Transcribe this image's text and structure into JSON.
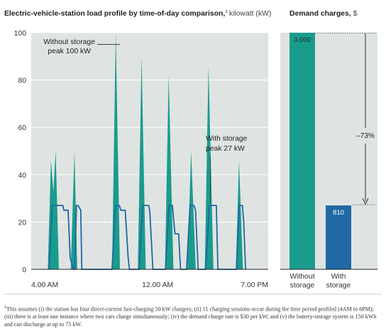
{
  "chart_data": [
    {
      "type": "area",
      "title": "Electric-vehicle-station load profile by time-of-day comparison,",
      "title_sup": "1",
      "unit": "kilowatt (kW)",
      "ylim": [
        0,
        100
      ],
      "yticks": [
        "0",
        "20",
        "40",
        "60",
        "80",
        "100"
      ],
      "xlim": [
        "04:00",
        "19:00"
      ],
      "xticks": [
        {
          "label": "4.00 AM",
          "t": "04:00"
        },
        {
          "label": "12.00 AM",
          "t": "12:00"
        },
        {
          "label": "7.00 PM",
          "t": "19:00"
        }
      ],
      "grid": true,
      "colors": {
        "without": "#1a9c8c",
        "with": "#1f68a4",
        "plot_bg": "#dfe4e2",
        "grid": "#ffffff"
      },
      "annotations": [
        {
          "line1": "Without storage",
          "line2": "peak 100 kW"
        },
        {
          "line1": "With storage",
          "line2": "peak 27 kW"
        }
      ],
      "series": [
        {
          "name": "Without storage",
          "points": [
            [
              "05:03",
              0
            ],
            [
              "05:15",
              46
            ],
            [
              "05:24",
              33
            ],
            [
              "05:33",
              50
            ],
            [
              "05:45",
              0
            ],
            [
              "06:30",
              0
            ],
            [
              "06:44",
              50
            ],
            [
              "06:55",
              0
            ],
            [
              "09:07",
              0
            ],
            [
              "09:21",
              100
            ],
            [
              "09:37",
              0
            ],
            [
              "10:45",
              0
            ],
            [
              "10:59",
              90
            ],
            [
              "11:15",
              0
            ],
            [
              "12:28",
              0
            ],
            [
              "12:42",
              82
            ],
            [
              "13:00",
              0
            ],
            [
              "13:53",
              0
            ],
            [
              "14:07",
              50
            ],
            [
              "14:25",
              0
            ],
            [
              "14:59",
              0
            ],
            [
              "15:13",
              86
            ],
            [
              "15:32",
              0
            ],
            [
              "16:57",
              0
            ],
            [
              "17:09",
              46
            ],
            [
              "17:24",
              0
            ]
          ]
        },
        {
          "name": "With storage",
          "points": [
            [
              "05:08",
              0
            ],
            [
              "05:20",
              27
            ],
            [
              "06:00",
              27
            ],
            [
              "06:04",
              25
            ],
            [
              "06:20",
              25
            ],
            [
              "06:28",
              5
            ],
            [
              "06:40",
              0
            ],
            [
              "06:45",
              0
            ],
            [
              "06:52",
              27
            ],
            [
              "06:58",
              27
            ],
            [
              "07:08",
              25
            ],
            [
              "07:12",
              0
            ],
            [
              "09:07",
              0
            ],
            [
              "09:20",
              27
            ],
            [
              "09:35",
              27
            ],
            [
              "09:40",
              25
            ],
            [
              "09:57",
              25
            ],
            [
              "10:08",
              5
            ],
            [
              "10:13",
              0
            ],
            [
              "10:50",
              0
            ],
            [
              "11:03",
              27
            ],
            [
              "11:26",
              27
            ],
            [
              "11:30",
              25
            ],
            [
              "11:42",
              0
            ],
            [
              "12:30",
              0
            ],
            [
              "12:43",
              27
            ],
            [
              "12:56",
              27
            ],
            [
              "13:06",
              15
            ],
            [
              "13:20",
              15
            ],
            [
              "13:27",
              0
            ],
            [
              "13:50",
              0
            ],
            [
              "14:03",
              27
            ],
            [
              "14:18",
              27
            ],
            [
              "14:24",
              25
            ],
            [
              "14:34",
              0
            ],
            [
              "15:03",
              0
            ],
            [
              "15:16",
              27
            ],
            [
              "15:43",
              27
            ],
            [
              "15:49",
              0
            ],
            [
              "16:59",
              0
            ],
            [
              "17:11",
              27
            ],
            [
              "17:22",
              27
            ],
            [
              "17:27",
              20
            ],
            [
              "17:34",
              0
            ]
          ]
        }
      ]
    },
    {
      "type": "bar",
      "title": "Demand charges,",
      "unit": "$",
      "categories": [
        [
          "Without",
          "storage"
        ],
        [
          "With",
          "storage"
        ]
      ],
      "values": [
        3000,
        810
      ],
      "value_labels": [
        "3,000",
        "810"
      ],
      "colors": [
        "#1a9c8c",
        "#1f68a4"
      ],
      "ylim": [
        0,
        3000
      ],
      "change_label": "–73%"
    }
  ],
  "footnote": {
    "marker": "1",
    "text": "This assumes (i) the station has four direct-current fast-charging 50 kW chargers; (ii) 11 charging sessions occur during the time period profiled (4AM to 6PM); (iii) there is at least one instance where two cars charge simultaneously; (iv) the demand charge rate is $30 per kW; and (v) the battery-storage system is 150 kWh and can discharge at up to 75 kW."
  }
}
